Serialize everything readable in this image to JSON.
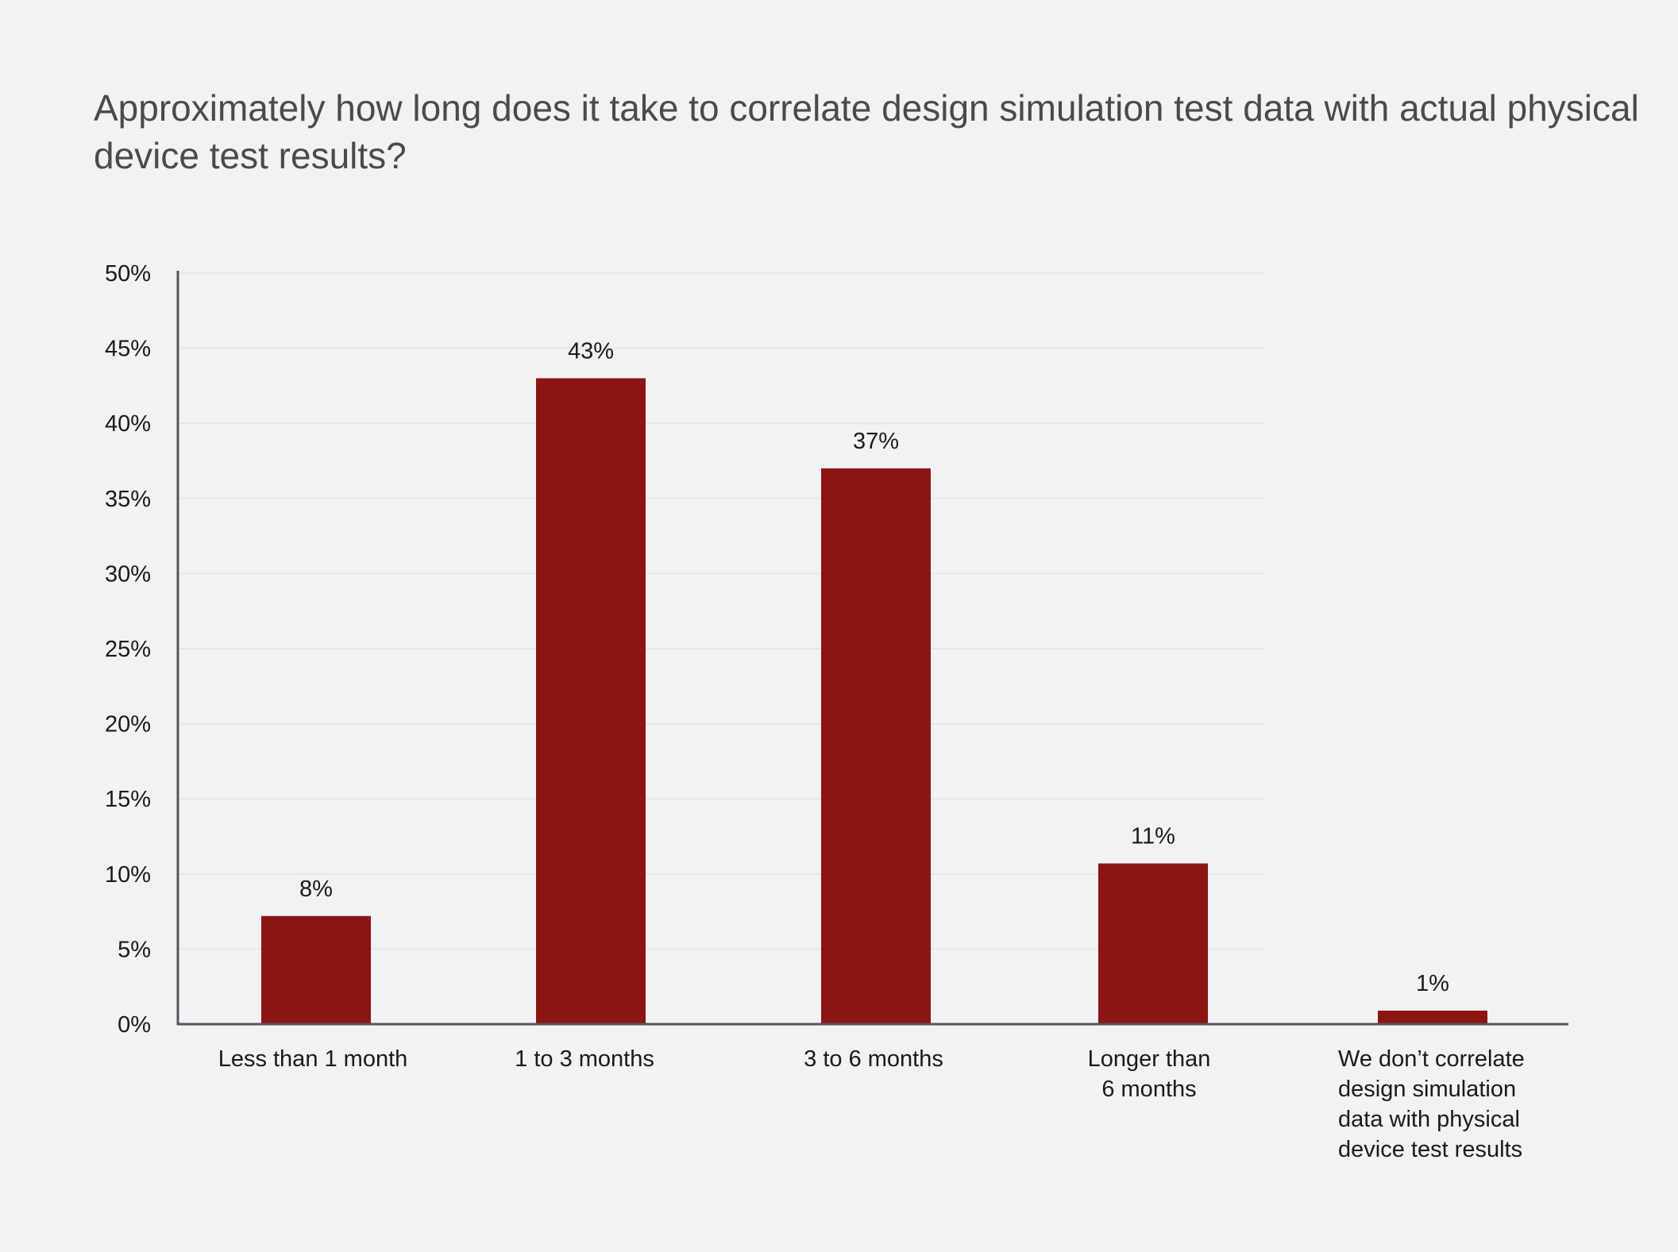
{
  "chart_data": {
    "type": "bar",
    "title_lines": [
      "Approximately how long does it take to correlate design simulation test data with actual physical",
      "device test results?"
    ],
    "categories": [
      [
        "Less than 1 month"
      ],
      [
        "1 to 3 months"
      ],
      [
        "3 to 6 months"
      ],
      [
        "Longer than",
        "6 months"
      ],
      [
        "We don’t correlate",
        "design simulation",
        "data with physical",
        "device test results"
      ]
    ],
    "values": [
      8,
      43,
      37,
      11,
      1
    ],
    "value_labels": [
      "8%",
      "43%",
      "37%",
      "11%",
      "1%"
    ],
    "bar_heights_read": [
      7.2,
      43,
      37,
      10.7,
      0.9
    ],
    "ylim": [
      0,
      50
    ],
    "yticks": [
      "0%",
      "5%",
      "10%",
      "15%",
      "20%",
      "25%",
      "30%",
      "35%",
      "40%",
      "45%",
      "50%"
    ],
    "grid": true,
    "bar_color": "#8b1513"
  }
}
